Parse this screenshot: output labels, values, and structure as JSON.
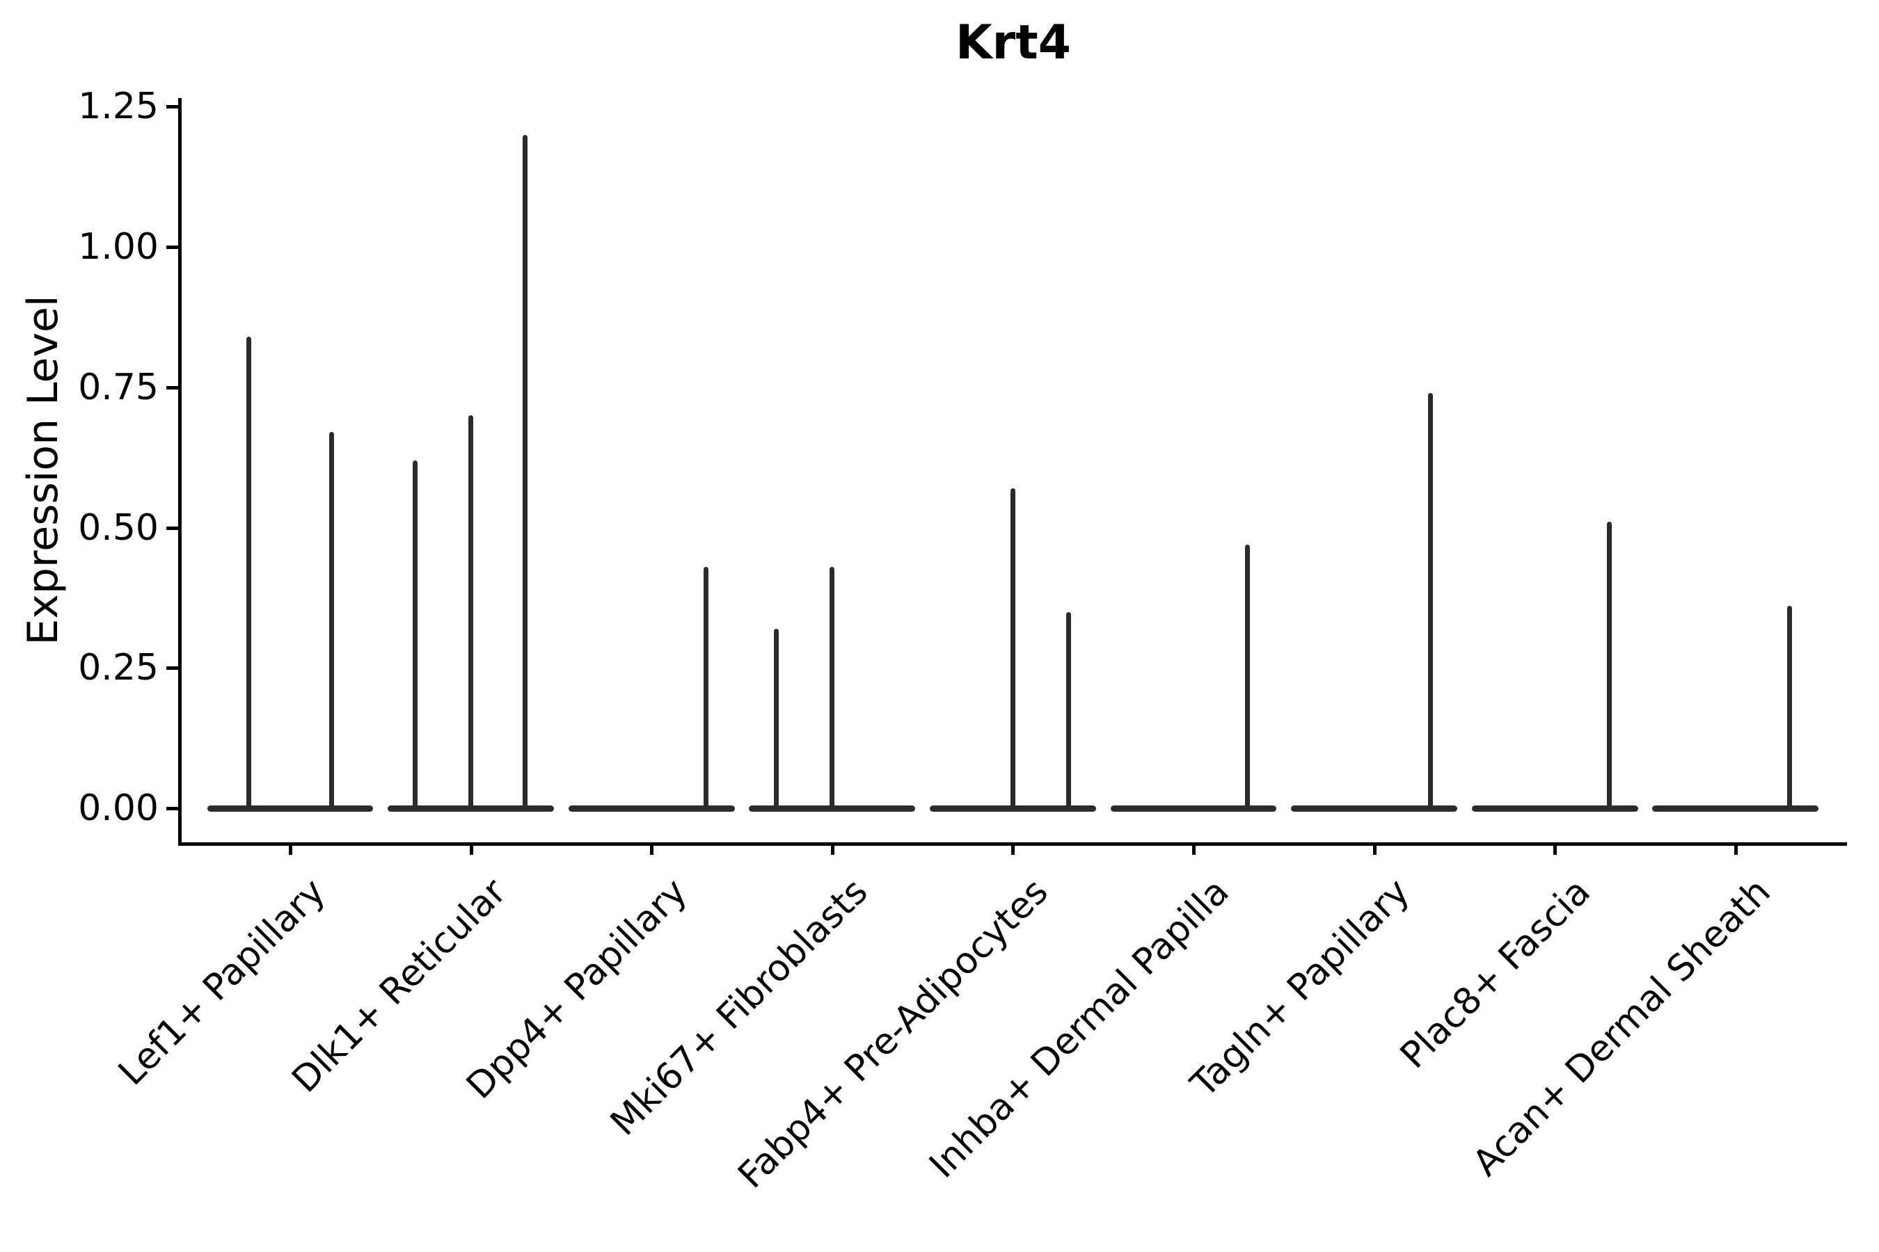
{
  "chart_data": {
    "type": "violin",
    "title": "Krt4",
    "xlabel": "",
    "ylabel": "Expression Level",
    "ylim": [
      0,
      1.25
    ],
    "grid": false,
    "legend": null,
    "marks_color": "#2b2b2b",
    "axis_color": "#000000",
    "yticks": [
      {
        "value": 0.0,
        "label": "0.00"
      },
      {
        "value": 0.25,
        "label": "0.25"
      },
      {
        "value": 0.5,
        "label": "0.50"
      },
      {
        "value": 0.75,
        "label": "0.75"
      },
      {
        "value": 1.0,
        "label": "1.00"
      },
      {
        "value": 1.25,
        "label": "1.25"
      }
    ],
    "categories": [
      {
        "label": "Lef1+ Papillary",
        "spikes": [
          {
            "offset": -0.23,
            "value": 0.84
          },
          {
            "offset": 0.23,
            "value": 0.67
          }
        ]
      },
      {
        "label": "Dlk1+ Reticular",
        "spikes": [
          {
            "offset": -0.31,
            "value": 0.62
          },
          {
            "offset": 0.0,
            "value": 0.7
          },
          {
            "offset": 0.3,
            "value": 1.2
          }
        ]
      },
      {
        "label": "Dpp4+ Papillary",
        "spikes": [
          {
            "offset": 0.3,
            "value": 0.43
          }
        ]
      },
      {
        "label": "Mki67+ Fibroblasts",
        "spikes": [
          {
            "offset": -0.31,
            "value": 0.32
          },
          {
            "offset": 0.0,
            "value": 0.43
          }
        ]
      },
      {
        "label": "Fabp4+ Pre-Adipocytes",
        "spikes": [
          {
            "offset": 0.0,
            "value": 0.57
          },
          {
            "offset": 0.31,
            "value": 0.35
          }
        ]
      },
      {
        "label": "Inhba+ Dermal Papilla",
        "spikes": [
          {
            "offset": 0.3,
            "value": 0.47
          }
        ]
      },
      {
        "label": "Tagln+ Papillary",
        "spikes": [
          {
            "offset": 0.31,
            "value": 0.74
          }
        ]
      },
      {
        "label": "Plac8+ Fascia",
        "spikes": [
          {
            "offset": 0.3,
            "value": 0.51
          }
        ]
      },
      {
        "label": "Acan+ Dermal Sheath",
        "spikes": [
          {
            "offset": 0.3,
            "value": 0.36
          }
        ]
      }
    ],
    "violin_width": 0.92
  }
}
